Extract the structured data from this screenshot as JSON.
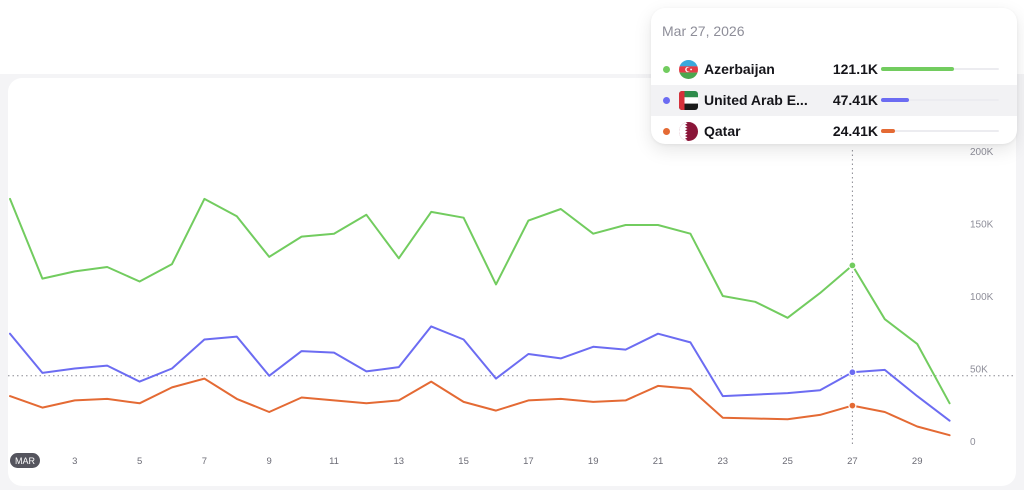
{
  "chart_data": {
    "type": "line",
    "month_badge": "MAR",
    "x_tick_labels": [
      "3",
      "5",
      "7",
      "9",
      "11",
      "13",
      "15",
      "17",
      "19",
      "21",
      "23",
      "25",
      "27",
      "29"
    ],
    "y_tick_labels": [
      "0",
      "50K",
      "100K",
      "150K",
      "200K"
    ],
    "ylim": [
      0,
      200000
    ],
    "x": [
      "Mar 1",
      "Mar 2",
      "Mar 3",
      "Mar 4",
      "Mar 5",
      "Mar 6",
      "Mar 7",
      "Mar 8",
      "Mar 9",
      "Mar 10",
      "Mar 11",
      "Mar 12",
      "Mar 13",
      "Mar 14",
      "Mar 15",
      "Mar 16",
      "Mar 17",
      "Mar 18",
      "Mar 19",
      "Mar 20",
      "Mar 21",
      "Mar 22",
      "Mar 23",
      "Mar 24",
      "Mar 25",
      "Mar 26",
      "Mar 27",
      "Mar 28",
      "Mar 29",
      "Mar 30"
    ],
    "highlight_index": 26,
    "reference_line_value": 45000,
    "series": [
      {
        "name": "Azerbaijan",
        "color": "#72cc5f",
        "values": [
          167000,
          112000,
          117000,
          120000,
          110000,
          122000,
          167000,
          155000,
          127000,
          141000,
          143000,
          156000,
          126000,
          158000,
          154000,
          108000,
          152000,
          160000,
          143000,
          149000,
          149000,
          143000,
          100000,
          96000,
          85000,
          102000,
          121100,
          84000,
          67000,
          26000
        ]
      },
      {
        "name": "United Arab Emirates",
        "color": "#6c6cf2",
        "values": [
          74000,
          47000,
          50000,
          52000,
          41000,
          50000,
          70000,
          72000,
          45000,
          62000,
          61000,
          48000,
          51000,
          79000,
          70000,
          43000,
          60000,
          57000,
          65000,
          63000,
          74000,
          68000,
          31000,
          32000,
          33000,
          35000,
          47410,
          49000,
          31000,
          14000
        ]
      },
      {
        "name": "Qatar",
        "color": "#e46a34",
        "values": [
          31000,
          23000,
          28000,
          29000,
          26000,
          37000,
          43000,
          29000,
          20000,
          30000,
          28000,
          26000,
          28000,
          41000,
          27000,
          21000,
          28000,
          29000,
          27000,
          28000,
          38000,
          36000,
          16000,
          15500,
          15000,
          18000,
          24410,
          20000,
          10000,
          4000
        ]
      }
    ]
  },
  "tooltip": {
    "date": "Mar 27, 2026",
    "rows": [
      {
        "name": "Azerbaijan",
        "value": "121.1K",
        "color": "#72cc5f",
        "flag": "azerbaijan-flag-icon",
        "fraction": 0.62
      },
      {
        "name": "United Arab E...",
        "value": "47.41K",
        "color": "#6c6cf2",
        "flag": "uae-flag-icon",
        "fraction": 0.24
      },
      {
        "name": "Qatar",
        "value": "24.41K",
        "color": "#e46a34",
        "flag": "qatar-flag-icon",
        "fraction": 0.12
      }
    ]
  }
}
